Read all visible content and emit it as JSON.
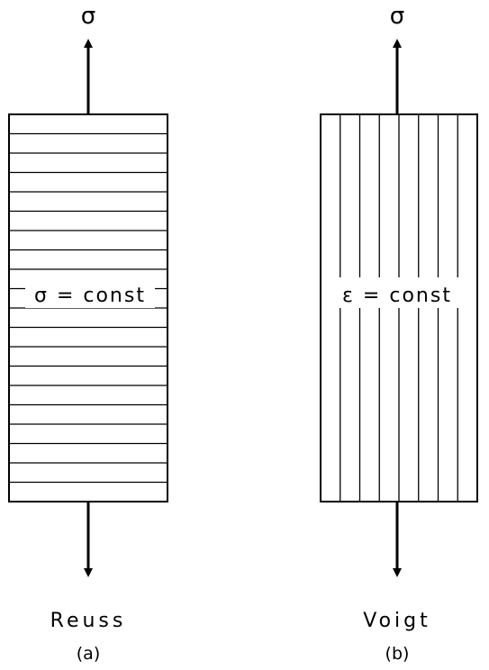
{
  "panels": [
    {
      "id": "a",
      "stress_top": "σ",
      "center_label": "σ = const",
      "name": "Reuss",
      "caption": "(a)",
      "stripe_orientation": "horizontal",
      "stripe_count": 20
    },
    {
      "id": "b",
      "stress_top": "σ",
      "center_label": "ε = const",
      "name": "Voigt",
      "caption": "(b)",
      "stripe_orientation": "vertical",
      "stripe_count": 8
    }
  ]
}
